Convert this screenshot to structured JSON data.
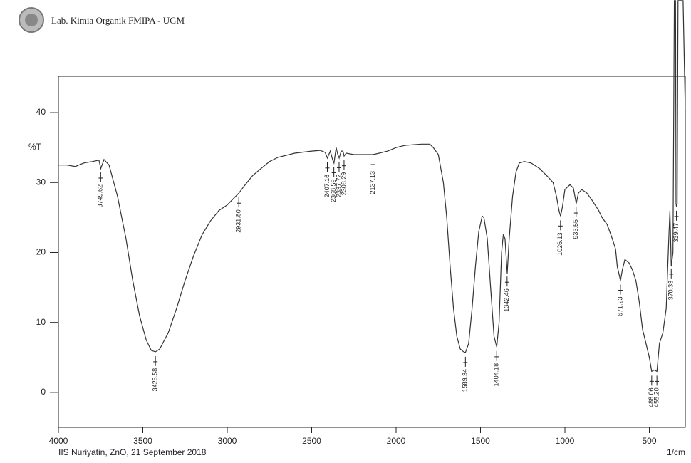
{
  "chart_data": {
    "type": "line",
    "header": "Lab. Kimia Organik FMIPA - UGM",
    "ylabel": "%T",
    "xlabel": "1/cm",
    "footer": "IIS Nuriyatin, ZnO, 21 September 2018",
    "color": "#333333",
    "xlim": [
      4000,
      287
    ],
    "ylim": [
      -5,
      45.2
    ],
    "xticks": [
      4000,
      3500,
      3000,
      2500,
      2000,
      1500,
      1000,
      500
    ],
    "yticks": [
      0,
      10,
      20,
      30,
      40
    ],
    "x": [
      4000,
      3950,
      3900,
      3850,
      3800,
      3760,
      3749,
      3730,
      3700,
      3650,
      3600,
      3560,
      3520,
      3480,
      3450,
      3425,
      3400,
      3350,
      3300,
      3250,
      3200,
      3150,
      3100,
      3050,
      3000,
      2960,
      2931,
      2900,
      2850,
      2800,
      2750,
      2700,
      2600,
      2500,
      2450,
      2420,
      2407,
      2390,
      2375,
      2368,
      2355,
      2345,
      2337,
      2325,
      2315,
      2308,
      2295,
      2250,
      2200,
      2137,
      2100,
      2050,
      2000,
      1950,
      1900,
      1850,
      1800,
      1780,
      1750,
      1720,
      1700,
      1680,
      1660,
      1640,
      1620,
      1600,
      1589,
      1570,
      1550,
      1530,
      1510,
      1490,
      1480,
      1460,
      1440,
      1420,
      1404,
      1390,
      1375,
      1365,
      1355,
      1342,
      1330,
      1310,
      1290,
      1270,
      1240,
      1200,
      1150,
      1100,
      1070,
      1050,
      1035,
      1026,
      1015,
      1000,
      970,
      950,
      933,
      920,
      900,
      870,
      840,
      800,
      780,
      750,
      720,
      700,
      690,
      671,
      660,
      645,
      620,
      600,
      580,
      560,
      540,
      520,
      500,
      486,
      470,
      455,
      440,
      420,
      400,
      385,
      378,
      370,
      360,
      352,
      345,
      342,
      339,
      335,
      330,
      300,
      287
    ],
    "values": [
      32.5,
      32.5,
      32.3,
      32.8,
      33,
      33.2,
      32,
      33.3,
      32.5,
      28,
      22,
      16,
      11,
      7.5,
      6,
      5.8,
      6.2,
      8.5,
      12,
      16,
      19.5,
      22.5,
      24.5,
      26,
      26.8,
      27.8,
      28.5,
      29.5,
      31,
      32,
      33,
      33.6,
      34.2,
      34.5,
      34.6,
      34.3,
      33.5,
      34.5,
      33.2,
      32.8,
      35,
      34,
      33.5,
      34.5,
      34.5,
      33.8,
      34.2,
      34,
      34,
      34,
      34.2,
      34.5,
      35,
      35.3,
      35.4,
      35.5,
      35.5,
      35,
      34,
      30,
      25,
      18,
      12,
      8,
      6.2,
      5.8,
      5.7,
      7,
      12,
      18,
      23,
      25.2,
      25,
      22,
      15,
      8,
      6.5,
      10,
      20,
      22.5,
      22,
      17,
      22,
      28,
      31.5,
      32.8,
      33,
      32.8,
      32,
      30.8,
      30,
      28,
      26,
      25.2,
      26.5,
      29,
      29.7,
      29.2,
      27,
      28.5,
      29,
      28.5,
      27.5,
      26,
      25,
      24,
      22,
      20.5,
      18,
      16,
      17.5,
      19,
      18.5,
      17.5,
      16,
      13,
      9,
      7,
      5,
      3,
      3.2,
      3,
      7,
      8.5,
      12,
      22,
      26,
      18,
      20,
      56,
      56,
      27,
      26.5,
      27,
      56,
      56,
      40
    ],
    "peaks": [
      {
        "value": 3749.62,
        "label": "3749.62"
      },
      {
        "value": 3425.58,
        "label": "3425.58"
      },
      {
        "value": 2931.8,
        "label": "2931.80"
      },
      {
        "value": 2407.16,
        "label": "2407.16"
      },
      {
        "value": 2368.59,
        "label": "2368.59"
      },
      {
        "value": 2337.72,
        "label": "2337.72"
      },
      {
        "value": 2308.29,
        "label": "2308.29"
      },
      {
        "value": 2137.13,
        "label": "2137.13"
      },
      {
        "value": 1589.34,
        "label": "1589.34"
      },
      {
        "value": 1404.18,
        "label": "1404.18"
      },
      {
        "value": 1342.46,
        "label": "1342.46"
      },
      {
        "value": 1026.13,
        "label": "1026.13"
      },
      {
        "value": 933.55,
        "label": "933.55"
      },
      {
        "value": 671.23,
        "label": "671.23"
      },
      {
        "value": 486.06,
        "label": "486.06"
      },
      {
        "value": 455.2,
        "label": "455.20"
      },
      {
        "value": 370.33,
        "label": "370.33"
      },
      {
        "value": 339.47,
        "label": "339.47"
      }
    ]
  }
}
